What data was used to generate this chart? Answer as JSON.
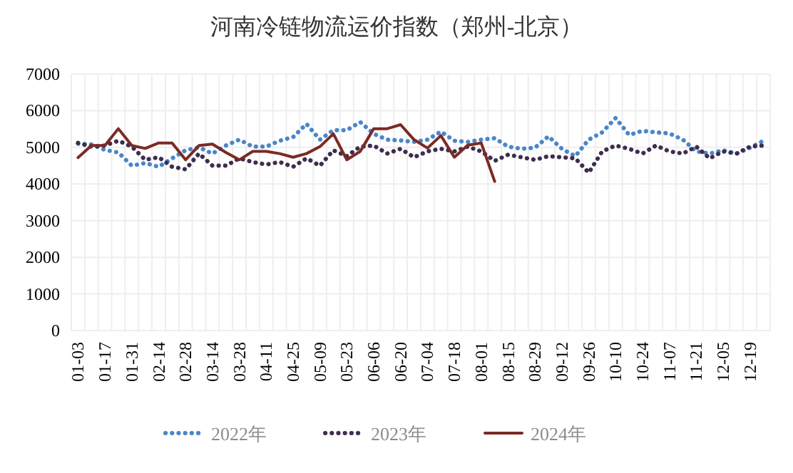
{
  "chart_data": {
    "type": "line",
    "title": "河南冷链物流运价指数（郑州-北京）",
    "categories": [
      "01-03",
      null,
      "01-17",
      null,
      "01-31",
      null,
      "02-14",
      null,
      "02-28",
      null,
      "03-14",
      null,
      "03-28",
      null,
      "04-11",
      null,
      "04-25",
      null,
      "05-09",
      null,
      "05-23",
      null,
      "06-06",
      null,
      "06-20",
      null,
      "07-04",
      null,
      "07-18",
      null,
      "08-01",
      null,
      "08-15",
      null,
      "08-29",
      null,
      "09-12",
      null,
      "09-26",
      null,
      "10-10",
      null,
      "10-24",
      null,
      "11-07",
      null,
      "11-21",
      null,
      "12-05",
      null,
      "12-19",
      null
    ],
    "ylim": [
      0,
      7000
    ],
    "yticks": [
      0,
      1000,
      2000,
      3000,
      4000,
      5000,
      6000,
      7000
    ],
    "grid": true,
    "legend": "bottom",
    "marker": "none",
    "series": [
      {
        "name": "2022年",
        "color": "#4a86c8",
        "line_style": "dotted",
        "values": [
          5100,
          5080,
          4930,
          4860,
          4500,
          4570,
          4470,
          4700,
          4920,
          5000,
          4830,
          5050,
          5210,
          5020,
          5020,
          5180,
          5280,
          5640,
          5210,
          5470,
          5470,
          5690,
          5370,
          5210,
          5190,
          5150,
          5210,
          5430,
          5180,
          5150,
          5210,
          5250,
          5020,
          4960,
          4990,
          5300,
          4960,
          4760,
          5210,
          5410,
          5800,
          5340,
          5450,
          5410,
          5380,
          5210,
          4890,
          4830,
          4920,
          4830,
          4990,
          5180
        ]
      },
      {
        "name": "2023年",
        "color": "#3d2d4e",
        "line_style": "dotted",
        "values": [
          5120,
          5020,
          5050,
          5180,
          5020,
          4660,
          4730,
          4470,
          4400,
          4830,
          4500,
          4500,
          4700,
          4600,
          4530,
          4600,
          4470,
          4700,
          4500,
          4920,
          4760,
          5020,
          5050,
          4830,
          4960,
          4730,
          4890,
          4960,
          4890,
          5020,
          4890,
          4630,
          4800,
          4730,
          4660,
          4760,
          4730,
          4700,
          4310,
          4890,
          5050,
          4960,
          4830,
          5050,
          4890,
          4830,
          5020,
          4700,
          4890,
          4830,
          5020,
          5050
        ]
      },
      {
        "name": "2024年",
        "color": "#7b2a25",
        "line_style": "solid",
        "values": [
          4720,
          5050,
          5050,
          5510,
          5050,
          4970,
          5120,
          5120,
          4660,
          5050,
          5090,
          4860,
          4660,
          4890,
          4890,
          4830,
          4730,
          4830,
          5020,
          5370,
          4660,
          4890,
          5510,
          5510,
          5620,
          5210,
          4980,
          5320,
          4730,
          5060,
          5120,
          4070,
          null,
          null,
          null,
          null,
          null,
          null,
          null,
          null,
          null,
          null,
          null,
          null,
          null,
          null,
          null,
          null,
          null,
          null,
          null,
          null
        ]
      }
    ]
  }
}
